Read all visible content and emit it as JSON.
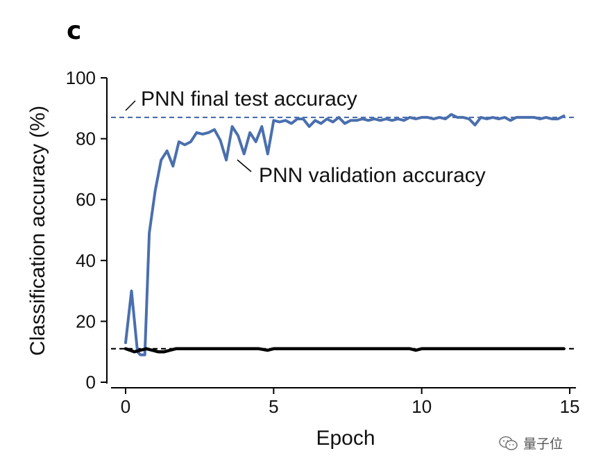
{
  "panel_label": "c",
  "watermark": {
    "text": "量子位",
    "icon": "wechat-icon"
  },
  "colors": {
    "blue": "#4a6fae",
    "black": "#000000"
  },
  "chart_data": {
    "type": "line",
    "xlabel": "Epoch",
    "ylabel": "Classification accuracy (%)",
    "xlim": [
      -0.4,
      15.4
    ],
    "ylim": [
      0,
      100
    ],
    "xticks": [
      0,
      5,
      10,
      15
    ],
    "yticks": [
      0,
      20,
      40,
      60,
      80,
      100
    ],
    "grid": false,
    "series": [
      {
        "name": "PNN validation accuracy",
        "color": "#4a6fae",
        "x": [
          0,
          0.2,
          0.4,
          0.5,
          0.65,
          0.8,
          1.0,
          1.2,
          1.4,
          1.6,
          1.8,
          2.0,
          2.2,
          2.4,
          2.6,
          2.8,
          3.0,
          3.2,
          3.4,
          3.6,
          3.8,
          4.0,
          4.2,
          4.4,
          4.6,
          4.8,
          5.0,
          5.2,
          5.4,
          5.6,
          5.8,
          6.0,
          6.2,
          6.4,
          6.6,
          6.8,
          7.0,
          7.2,
          7.4,
          7.6,
          7.8,
          8.0,
          8.2,
          8.4,
          8.6,
          8.8,
          9.0,
          9.2,
          9.4,
          9.6,
          9.8,
          10.0,
          10.2,
          10.4,
          10.6,
          10.8,
          11.0,
          11.2,
          11.4,
          11.6,
          11.8,
          12.0,
          12.2,
          12.4,
          12.6,
          12.8,
          13.0,
          13.2,
          13.4,
          13.6,
          13.8,
          14.0,
          14.2,
          14.4,
          14.6,
          14.8
        ],
        "y": [
          13,
          30,
          10,
          9,
          9,
          49,
          63,
          73,
          76,
          71,
          79,
          78,
          79,
          82,
          81.5,
          82,
          83,
          79.5,
          73,
          84,
          81,
          75,
          82,
          79,
          84,
          75,
          86,
          85.5,
          86,
          85,
          86.5,
          86.5,
          84,
          86,
          85,
          86.5,
          85.5,
          87,
          85,
          86,
          86,
          86.5,
          86,
          86.5,
          86,
          86.5,
          86,
          86.5,
          86,
          87,
          86.5,
          87,
          87,
          86.5,
          87,
          86.5,
          88,
          87,
          87,
          86.5,
          84.5,
          87,
          86.5,
          87,
          86.5,
          87,
          86,
          87,
          87,
          87,
          87,
          86.5,
          87,
          86.5,
          86.5,
          87.5
        ]
      },
      {
        "name": "",
        "color": "#000000",
        "x": [
          0,
          0.3,
          0.5,
          0.7,
          0.9,
          1.1,
          1.3,
          1.5,
          1.7,
          2.0,
          2.5,
          3.0,
          3.5,
          4.0,
          4.5,
          4.8,
          5.0,
          5.5,
          6.0,
          7.0,
          8.0,
          9.0,
          9.6,
          9.8,
          10.0,
          11.0,
          12.0,
          13.0,
          14.0,
          14.8
        ],
        "y": [
          11,
          10,
          10.5,
          11,
          10.5,
          10,
          10,
          10.5,
          11,
          11,
          11,
          11,
          11,
          11,
          11,
          10.5,
          11,
          11,
          11,
          11,
          11,
          11,
          11,
          10.5,
          11,
          11,
          11,
          11,
          11,
          11
        ]
      }
    ],
    "reference_lines": [
      {
        "label": "PNN final test accuracy",
        "y": 87,
        "color": "#4a6fae",
        "style": "dashed"
      },
      {
        "label": "",
        "y": 11,
        "color": "#000000",
        "style": "dashed"
      }
    ],
    "annotations": [
      {
        "text": "PNN final test accuracy"
      },
      {
        "text": "PNN validation accuracy"
      }
    ]
  }
}
